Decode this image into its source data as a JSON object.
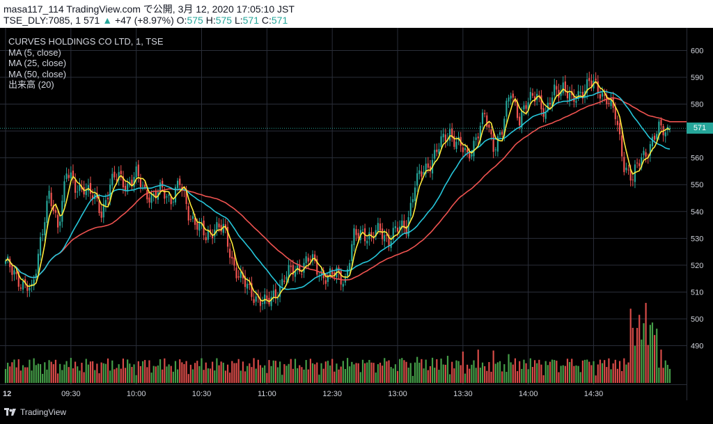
{
  "header": {
    "publish_line": "masa117_114 TradingView.com で公開, 3月 12, 2020 17:05:10 JST",
    "symbol_prefix": "TSE_DLY:7085, 1",
    "last": "571",
    "change": "+47 (+8.97%)",
    "ohlc": {
      "o_label": "O:",
      "o": "575",
      "h_label": "H:",
      "h": "575",
      "l_label": "L:",
      "l": "571",
      "c_label": "C:",
      "c": "571"
    }
  },
  "legend": {
    "title": "CURVES HOLDINGS CO LTD, 1, TSE",
    "ma5": "MA (5, close)",
    "ma25": "MA (25, close)",
    "ma50": "MA (50, close)",
    "volume": "出来高 (20)"
  },
  "last_price_tag": "571",
  "footer": {
    "brand": "TradingView"
  },
  "colors": {
    "up": "#26a69a",
    "down": "#ef5350",
    "ma5": "#ffeb3b",
    "ma25": "#26c6da",
    "ma50": "#ef5350",
    "vol_up": "#4caf50",
    "vol_down": "#ef5350",
    "grid": "#2a2e39"
  },
  "chart_data": {
    "type": "line",
    "ylim": [
      485,
      605
    ],
    "y_ticks": [
      490,
      500,
      510,
      520,
      530,
      540,
      550,
      560,
      570,
      580,
      590,
      600
    ],
    "time_ticks": [
      {
        "i": 0,
        "label": "12"
      },
      {
        "i": 30,
        "label": "09:30"
      },
      {
        "i": 60,
        "label": "10:00"
      },
      {
        "i": 90,
        "label": "10:30"
      },
      {
        "i": 120,
        "label": "11:00"
      },
      {
        "i": 150,
        "label": "12:30"
      },
      {
        "i": 180,
        "label": "13:00"
      },
      {
        "i": 210,
        "label": "13:30"
      },
      {
        "i": 240,
        "label": "14:00"
      },
      {
        "i": 270,
        "label": "14:30"
      }
    ],
    "n_bars": 306,
    "close_anchors": [
      [
        0,
        520
      ],
      [
        4,
        518
      ],
      [
        8,
        512
      ],
      [
        12,
        510
      ],
      [
        16,
        530
      ],
      [
        20,
        545
      ],
      [
        24,
        535
      ],
      [
        28,
        555
      ],
      [
        32,
        548
      ],
      [
        36,
        550
      ],
      [
        40,
        545
      ],
      [
        44,
        540
      ],
      [
        48,
        550
      ],
      [
        52,
        553
      ],
      [
        56,
        550
      ],
      [
        60,
        553
      ],
      [
        64,
        548
      ],
      [
        68,
        545
      ],
      [
        72,
        548
      ],
      [
        76,
        545
      ],
      [
        80,
        550
      ],
      [
        84,
        540
      ],
      [
        88,
        535
      ],
      [
        92,
        530
      ],
      [
        96,
        535
      ],
      [
        100,
        533
      ],
      [
        104,
        522
      ],
      [
        108,
        515
      ],
      [
        112,
        510
      ],
      [
        116,
        508
      ],
      [
        120,
        505
      ],
      [
        124,
        510
      ],
      [
        128,
        515
      ],
      [
        132,
        518
      ],
      [
        136,
        520
      ],
      [
        140,
        522
      ],
      [
        144,
        518
      ],
      [
        148,
        515
      ],
      [
        152,
        517
      ],
      [
        156,
        515
      ],
      [
        160,
        530
      ],
      [
        164,
        533
      ],
      [
        168,
        530
      ],
      [
        172,
        533
      ],
      [
        176,
        530
      ],
      [
        180,
        533
      ],
      [
        184,
        535
      ],
      [
        188,
        550
      ],
      [
        192,
        555
      ],
      [
        196,
        560
      ],
      [
        200,
        565
      ],
      [
        204,
        570
      ],
      [
        208,
        565
      ],
      [
        212,
        560
      ],
      [
        216,
        568
      ],
      [
        220,
        575
      ],
      [
        224,
        565
      ],
      [
        228,
        570
      ],
      [
        232,
        585
      ],
      [
        236,
        575
      ],
      [
        240,
        580
      ],
      [
        244,
        585
      ],
      [
        248,
        575
      ],
      [
        252,
        585
      ],
      [
        256,
        587
      ],
      [
        260,
        580
      ],
      [
        264,
        585
      ],
      [
        268,
        588
      ],
      [
        272,
        585
      ],
      [
        276,
        583
      ],
      [
        280,
        575
      ],
      [
        284,
        558
      ],
      [
        288,
        552
      ],
      [
        292,
        560
      ],
      [
        296,
        565
      ],
      [
        300,
        570
      ],
      [
        305,
        571
      ]
    ],
    "series": [
      {
        "name": "MA (5, close)"
      },
      {
        "name": "MA (25, close)"
      },
      {
        "name": "MA (50, close)"
      },
      {
        "name": "出来高 (20)"
      }
    ]
  }
}
